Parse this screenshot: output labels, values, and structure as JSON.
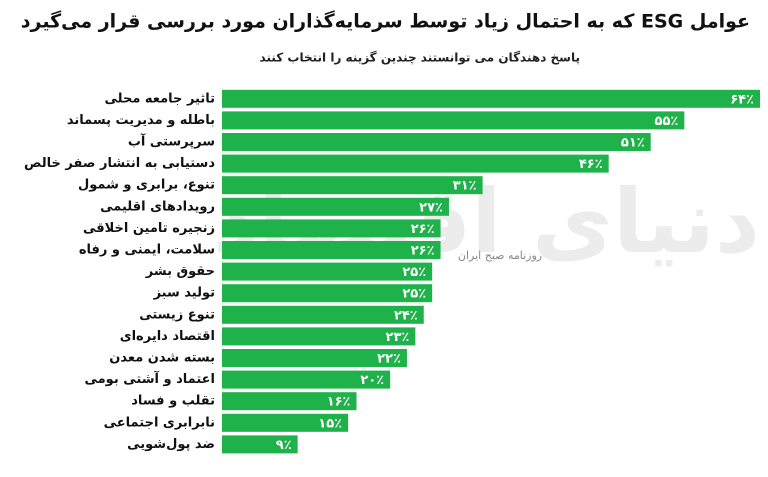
{
  "chart_data": {
    "type": "bar",
    "orientation": "horizontal",
    "title": "عوامل ESG که به احتمال زیاد توسط سرمایه‌گذاران مورد بررسی قرار می‌گیرد",
    "subtitle": "پاسخ دهندگان می توانستند چندین گزینه را انتخاب کنند",
    "categories": [
      "تاثیر جامعه محلی",
      "باطله و مدیریت پسماند",
      "سرپرستی آب",
      "دستیابی به انتشار صفر خالص",
      "تنوع، برابری و شمول",
      "رویدادهای اقلیمی",
      "زنجیره تامین اخلاقی",
      "سلامت، ایمنی و رفاه",
      "حقوق بشر",
      "تولید سبز",
      "تنوع زیستی",
      "اقتصاد دایره‌ای",
      "بسته شدن معدن",
      "اعتماد و آشتی بومی",
      "تقلب و فساد",
      "نابرابری اجتماعی",
      "ضد پول‌شویی"
    ],
    "values": [
      64,
      55,
      51,
      46,
      31,
      27,
      26,
      26,
      25,
      25,
      24,
      23,
      22,
      20,
      16,
      15,
      9
    ],
    "value_labels": [
      "۶۴٪",
      "۵۵٪",
      "۵۱٪",
      "۴۶٪",
      "۳۱٪",
      "۲۷٪",
      "۲۶٪",
      "۲۶٪",
      "۲۵٪",
      "۲۵٪",
      "۲۴٪",
      "۲۳٪",
      "۲۲٪",
      "۲۰٪",
      "۱۶٪",
      "۱۵٪",
      "۹٪"
    ],
    "color": "#1fb24a",
    "watermark": {
      "logo": "دنیای اقتصاد",
      "tagline": "روزنامه صبح ایران"
    }
  }
}
